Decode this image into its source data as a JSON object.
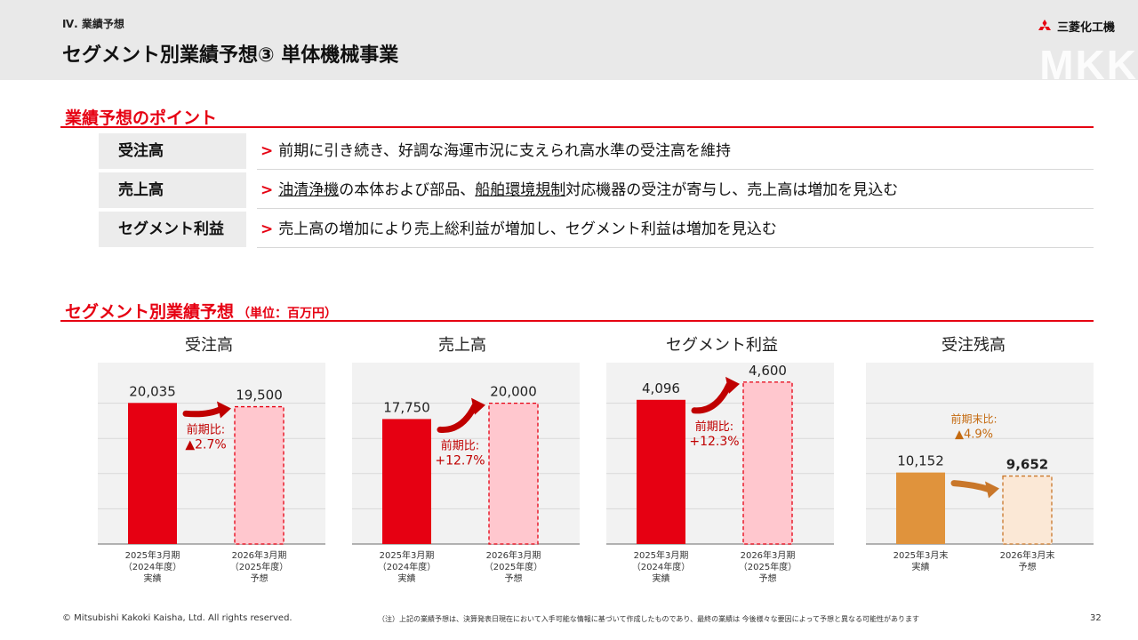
{
  "header": {
    "section": "Ⅳ. 業績予想",
    "title": "セグメント別業績予想③ 単体機械事業",
    "logo_text": "三菱化工機",
    "watermark": "MKK"
  },
  "points": {
    "title": "業績予想のポイント",
    "marker": ">",
    "rows": [
      {
        "label": "受注高",
        "pre": "前期に引き続き、好調な海運市況に支えられ高水準の受注高を維持",
        "u1": "",
        "mid": "",
        "u2": "",
        "post": ""
      },
      {
        "label": "売上高",
        "pre": "",
        "u1": "油清浄機",
        "mid": "の本体および部品、",
        "u2": "船舶環境規制",
        "post": "対応機器の受注が寄与し、売上高は増加を見込む"
      },
      {
        "label": "セグメント利益",
        "pre": "売上高の増加により売上総利益が増加し、セグメント利益は増加を見込む",
        "u1": "",
        "mid": "",
        "u2": "",
        "post": ""
      }
    ]
  },
  "forecast": {
    "title": "セグメント別業績予想",
    "unit": "（単位：百万円）"
  },
  "chart_data": [
    {
      "type": "bar",
      "title": "受注高",
      "categories": [
        "2025年3月期\n（2024年度）\n実績",
        "2026年3月期\n（2025年度）\n予想"
      ],
      "values": [
        20035,
        19500
      ],
      "value_labels": [
        "20,035",
        "19,500"
      ],
      "ylim": [
        0,
        25000
      ],
      "grid": true,
      "change_label": [
        "前期比:",
        "▲2.7%"
      ],
      "colors": {
        "actual": "#e60012",
        "forecast_fill": "#ffc7ce",
        "forecast_border": "#e60012",
        "label": "#c00000"
      }
    },
    {
      "type": "bar",
      "title": "売上高",
      "categories": [
        "2025年3月期\n（2024年度）\n実績",
        "2026年3月期\n（2025年度）\n予想"
      ],
      "values": [
        17750,
        20000
      ],
      "value_labels": [
        "17,750",
        "20,000"
      ],
      "ylim": [
        0,
        25000
      ],
      "grid": true,
      "change_label": [
        "前期比:",
        "+12.7%"
      ],
      "colors": {
        "actual": "#e60012",
        "forecast_fill": "#ffc7ce",
        "forecast_border": "#e60012",
        "label": "#c00000"
      }
    },
    {
      "type": "bar",
      "title": "セグメント利益",
      "categories": [
        "2025年3月期\n（2024年度）\n実績",
        "2026年3月期\n（2025年度）\n予想"
      ],
      "values": [
        4096,
        4600
      ],
      "value_labels": [
        "4,096",
        "4,600"
      ],
      "ylim": [
        0,
        5000
      ],
      "grid": true,
      "change_label": [
        "前期比:",
        "+12.3%"
      ],
      "colors": {
        "actual": "#e60012",
        "forecast_fill": "#ffc7ce",
        "forecast_border": "#e60012",
        "label": "#c00000"
      }
    },
    {
      "type": "bar",
      "title": "受注残高",
      "categories": [
        "2025年3月末\n実績",
        "2026年3月末\n予想"
      ],
      "values": [
        10152,
        9652
      ],
      "value_labels": [
        "10,152",
        "9,652"
      ],
      "ylim": [
        0,
        25000
      ],
      "grid": true,
      "change_label": [
        "前期末比:",
        "▲4.9%"
      ],
      "colors": {
        "actual": "#e0933c",
        "forecast_fill": "#fbe8d6",
        "forecast_border": "#c9772a",
        "label": "#c46a10"
      }
    }
  ],
  "footer": {
    "copyright": "© Mitsubishi Kakoki Kaisha, Ltd. All rights reserved.",
    "note": "（注）上記の業績予想は、決算発表日現在において入手可能な情報に基づいて作成したものであり、最終の業績は 今後様々な要因によって予想と異なる可能性があります",
    "page": "32"
  }
}
